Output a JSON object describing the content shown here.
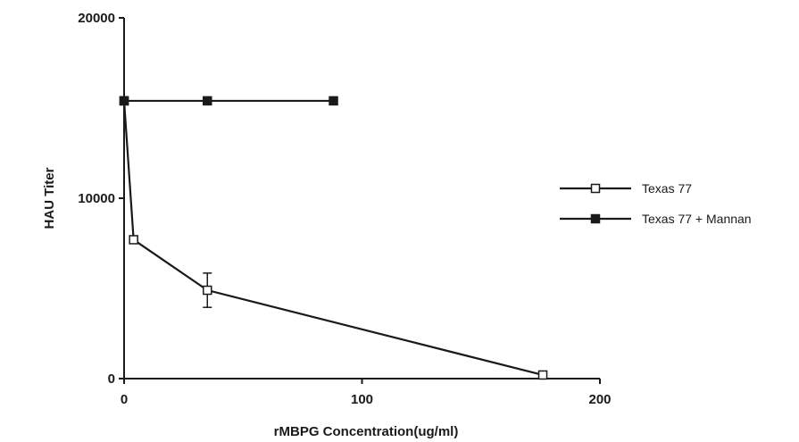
{
  "chart_data": {
    "type": "line",
    "title": "",
    "xlabel": "rMBPG   Concentration(ug/ml)",
    "ylabel": "HAU  Titer",
    "xlim": [
      0,
      200
    ],
    "ylim": [
      0,
      20000
    ],
    "xticks": [
      0,
      100,
      200
    ],
    "yticks": [
      0,
      10000,
      20000
    ],
    "xtick_labels": [
      "0",
      "100",
      "200"
    ],
    "ytick_labels": [
      "0",
      "10000",
      "20000"
    ],
    "grid": false,
    "legend_position": "right",
    "series": [
      {
        "name": "Texas 77",
        "marker": "open-square",
        "color": "#1a1a1a",
        "x": [
          0,
          4,
          35,
          176
        ],
        "y": [
          15400,
          7700,
          4900,
          200
        ],
        "error": [
          0,
          0,
          950,
          0
        ]
      },
      {
        "name": "Texas 77 + Mannan",
        "marker": "filled-square",
        "color": "#1a1a1a",
        "x": [
          0,
          35,
          88
        ],
        "y": [
          15400,
          15400,
          15400
        ],
        "error": [
          0,
          0,
          0
        ]
      }
    ]
  }
}
